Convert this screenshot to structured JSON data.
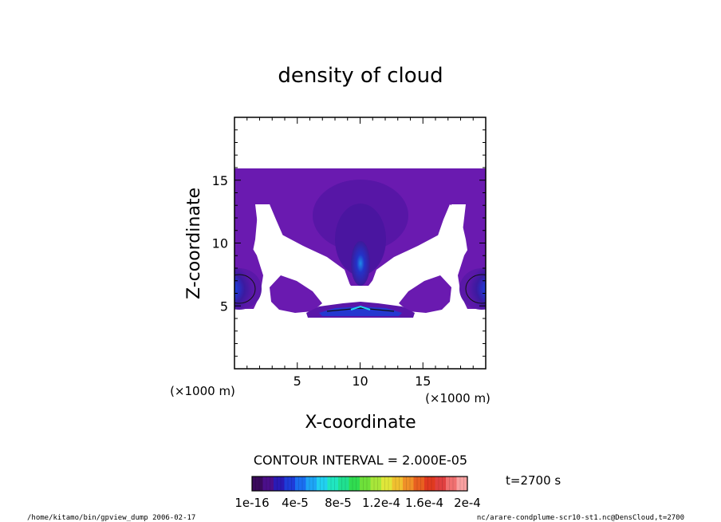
{
  "chart_data": {
    "type": "heatmap",
    "title": "density of cloud",
    "xlabel": "X-coordinate",
    "ylabel": "Z-coordinate",
    "x_unit": "(×1000 m)",
    "z_unit": "(×1000 m)",
    "xlim": [
      0,
      20
    ],
    "ylim": [
      0,
      20
    ],
    "x_ticks": [
      5,
      10,
      15
    ],
    "y_ticks": [
      5,
      10,
      15
    ],
    "x_tick_labels": [
      "5",
      "10",
      "15"
    ],
    "y_tick_labels": [
      "5",
      "10",
      "15"
    ],
    "contour_interval_text": "CONTOUR INTERVAL = 2.000E-05",
    "time_text": "t=2700 s",
    "colorbar": {
      "labels": [
        "1e-16",
        "4e-5",
        "8e-5",
        "1.2e-4",
        "1.6e-4",
        "2e-4"
      ],
      "min": 0,
      "max": 0.0002,
      "colors": [
        "#3a0a5c",
        "#4b0f8a",
        "#2a1ab5",
        "#1e3cd8",
        "#1a6ef0",
        "#1ea4f5",
        "#22d0f0",
        "#20e6c0",
        "#20e090",
        "#30dc50",
        "#6ee03a",
        "#a8e63a",
        "#e0e63a",
        "#f0c030",
        "#f09028",
        "#e86020",
        "#e03a20",
        "#e04040",
        "#f07070",
        "#f8a0a0"
      ]
    },
    "footer_left": "/home/kitamo/bin/gpview_dump  2006-02-17",
    "footer_right": "nc/arare-condplume-scr10-st1.nc@DensCloud,t=2700"
  }
}
